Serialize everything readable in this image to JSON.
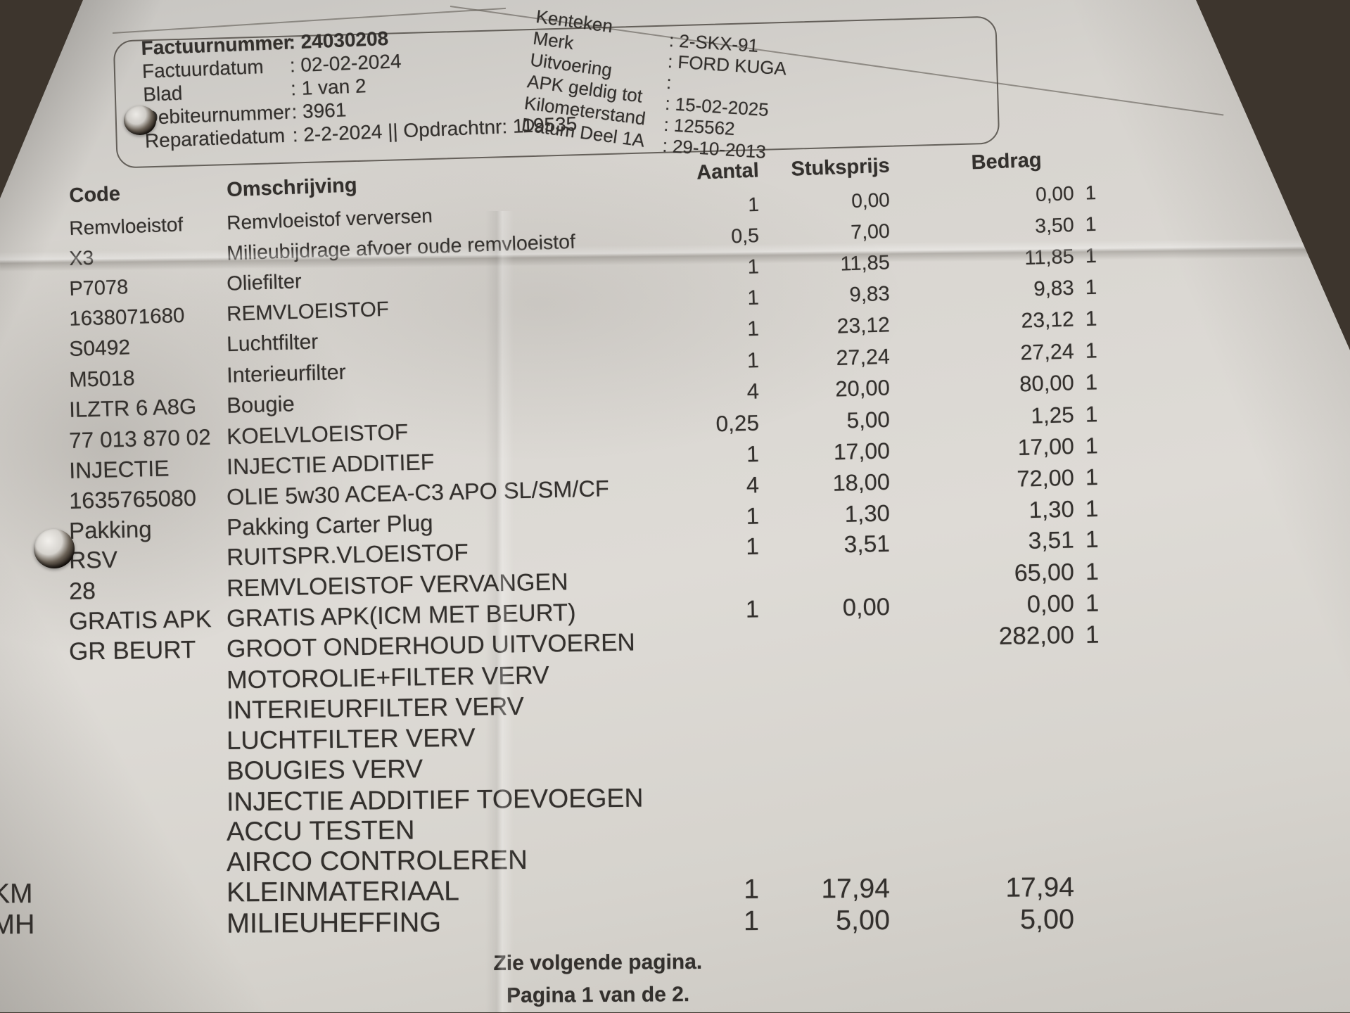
{
  "invoice_header": {
    "fields": [
      {
        "label": "Factuurnummer",
        "value": ": 24030208",
        "bold": true
      },
      {
        "label": "Factuurdatum",
        "value": ": 02-02-2024"
      },
      {
        "label": "Blad",
        "value": ": 1 van 2"
      },
      {
        "label": "Debiteurnummer",
        "value": ": 3961"
      },
      {
        "label": "Reparatiedatum",
        "value": ": 2-2-2024 || Opdrachtnr: 119535"
      }
    ]
  },
  "vehicle_header": {
    "labels": [
      "Kenteken",
      "Merk",
      "Uitvoering",
      "APK geldig tot",
      "Kilometerstand",
      "Datum Deel 1A"
    ],
    "values": [
      ": 2-SKX-91",
      ": FORD KUGA",
      ":",
      ": 15-02-2025",
      ": 125562",
      ": 29-10-2013"
    ]
  },
  "table": {
    "headers": {
      "code": "Code",
      "description": "Omschrijving",
      "qty": "Aantal",
      "unit_price": "Stuksprijs",
      "amount": "Bedrag"
    },
    "rows": [
      {
        "code": "Remvloeistof",
        "description": "Remvloeistof verversen",
        "qty": "1",
        "unit_price": "0,00",
        "amount": "0,00",
        "vat": "1"
      },
      {
        "code": "X3",
        "description": "Milieubijdrage afvoer oude remvloeistof",
        "qty": "0,5",
        "unit_price": "7,00",
        "amount": "3,50",
        "vat": "1"
      },
      {
        "code": "P7078",
        "description": "Oliefilter",
        "qty": "1",
        "unit_price": "11,85",
        "amount": "11,85",
        "vat": "1"
      },
      {
        "code": "1638071680",
        "description": "REMVLOEISTOF",
        "qty": "1",
        "unit_price": "9,83",
        "amount": "9,83",
        "vat": "1"
      },
      {
        "code": "S0492",
        "description": "Luchtfilter",
        "qty": "1",
        "unit_price": "23,12",
        "amount": "23,12",
        "vat": "1"
      },
      {
        "code": "M5018",
        "description": "Interieurfilter",
        "qty": "1",
        "unit_price": "27,24",
        "amount": "27,24",
        "vat": "1"
      },
      {
        "code": "ILZTR 6 A8G",
        "description": "Bougie",
        "qty": "4",
        "unit_price": "20,00",
        "amount": "80,00",
        "vat": "1"
      },
      {
        "code": "77 013 870 02",
        "description": "KOELVLOEISTOF",
        "qty": "0,25",
        "unit_price": "5,00",
        "amount": "1,25",
        "vat": "1"
      },
      {
        "code": "INJECTIE",
        "description": "INJECTIE ADDITIEF",
        "qty": "1",
        "unit_price": "17,00",
        "amount": "17,00",
        "vat": "1"
      },
      {
        "code": "1635765080",
        "description": "OLIE 5w30 ACEA-C3 APO SL/SM/CF",
        "qty": "4",
        "unit_price": "18,00",
        "amount": "72,00",
        "vat": "1"
      },
      {
        "code": "Pakking",
        "description": "Pakking Carter Plug",
        "qty": "1",
        "unit_price": "1,30",
        "amount": "1,30",
        "vat": "1"
      },
      {
        "code": "RSV",
        "description": "RUITSPR.VLOEISTOF",
        "qty": "1",
        "unit_price": "3,51",
        "amount": "3,51",
        "vat": "1"
      },
      {
        "code": "28",
        "description": "REMVLOEISTOF VERVANGEN",
        "qty": "",
        "unit_price": "",
        "amount": "65,00",
        "vat": "1"
      },
      {
        "code": "GRATIS APK",
        "description": "GRATIS APK(ICM MET BEURT)",
        "qty": "1",
        "unit_price": "0,00",
        "amount": "0,00",
        "vat": "1"
      },
      {
        "code": "GR BEURT",
        "description": "GROOT ONDERHOUD UITVOEREN",
        "qty": "",
        "unit_price": "",
        "amount": "282,00",
        "vat": "1"
      },
      {
        "code": "",
        "description": "MOTOROLIE+FILTER VERV",
        "qty": "",
        "unit_price": "",
        "amount": "",
        "vat": ""
      },
      {
        "code": "",
        "description": "INTERIEURFILTER VERV",
        "qty": "",
        "unit_price": "",
        "amount": "",
        "vat": ""
      },
      {
        "code": "",
        "description": "LUCHTFILTER VERV",
        "qty": "",
        "unit_price": "",
        "amount": "",
        "vat": ""
      },
      {
        "code": "",
        "description": "BOUGIES VERV",
        "qty": "",
        "unit_price": "",
        "amount": "",
        "vat": ""
      },
      {
        "code": "",
        "description": "INJECTIE ADDITIEF TOEVOEGEN",
        "qty": "",
        "unit_price": "",
        "amount": "",
        "vat": ""
      },
      {
        "code": "",
        "description": "ACCU TESTEN",
        "qty": "",
        "unit_price": "",
        "amount": "",
        "vat": ""
      },
      {
        "code": "",
        "description": "AIRCO CONTROLEREN",
        "qty": "",
        "unit_price": "",
        "amount": "",
        "vat": ""
      },
      {
        "code": "KM",
        "description": "KLEINMATERIAAL",
        "qty": "1",
        "unit_price": "17,94",
        "amount": "17,94",
        "vat": ""
      },
      {
        "code": "MH",
        "description": "MILIEUHEFFING",
        "qty": "1",
        "unit_price": "5,00",
        "amount": "5,00",
        "vat": ""
      }
    ]
  },
  "footer": {
    "line1": "Zie volgende pagina.",
    "line2": "Pagina 1 van de 2."
  }
}
